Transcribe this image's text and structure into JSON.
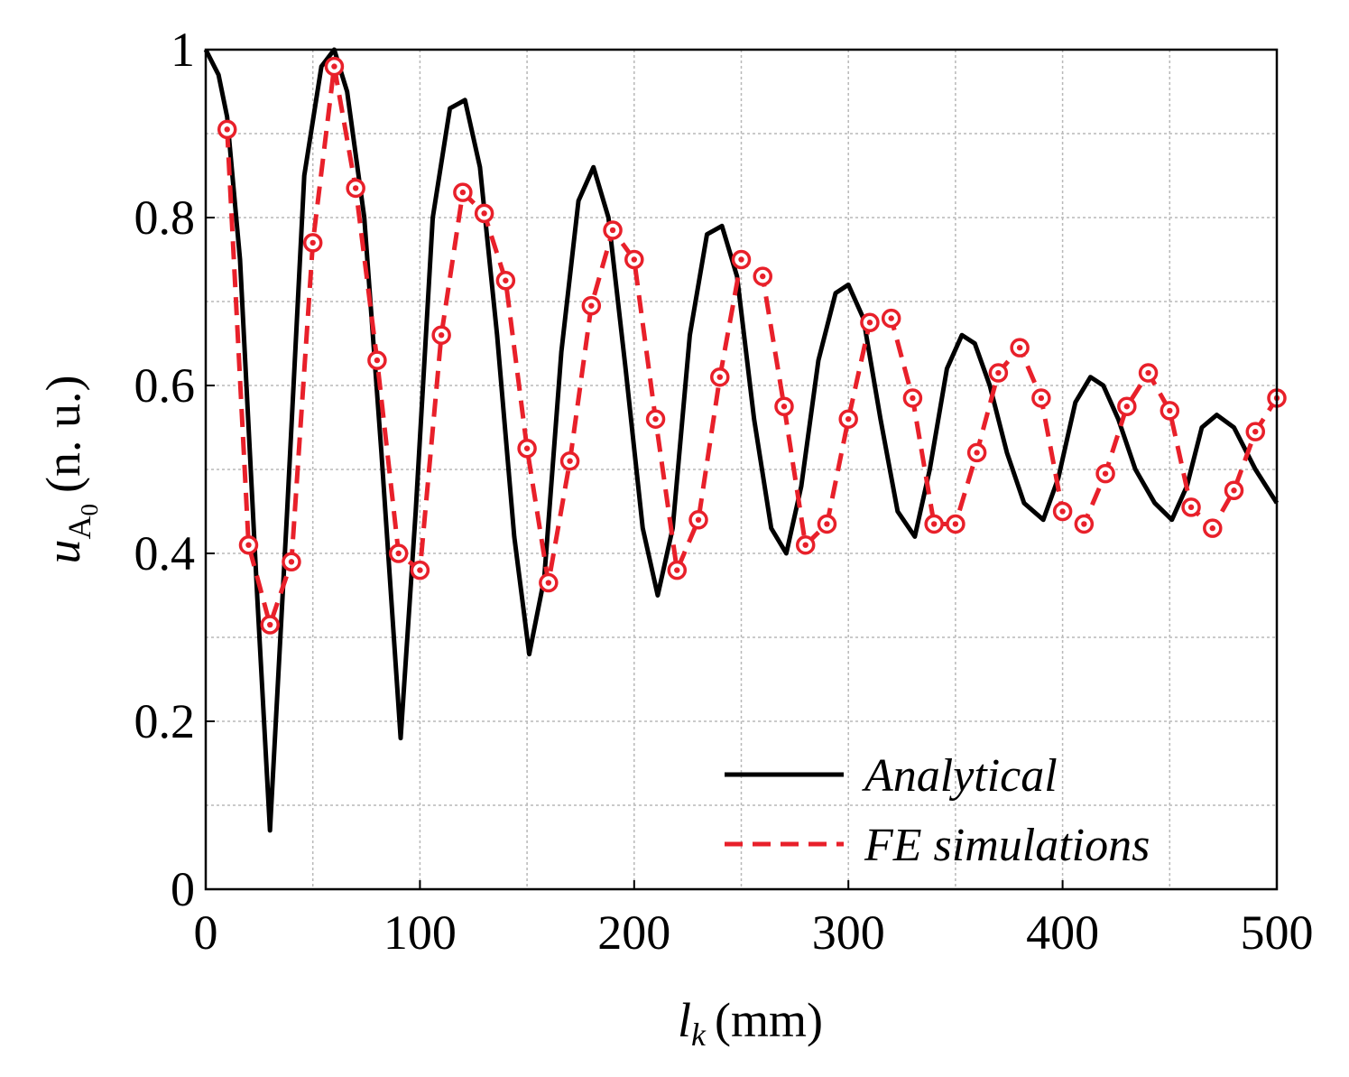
{
  "chart_data": {
    "type": "line",
    "xlabel": "l_k (mm)",
    "xlabel_var": "l",
    "xlabel_sub": "k",
    "xlabel_unit": "(mm)",
    "ylabel_var": "u",
    "ylabel_sub": "A",
    "ylabel_subsub": "0",
    "ylabel_unit": "(n. u.)",
    "xlim": [
      0,
      500
    ],
    "ylim": [
      0,
      1
    ],
    "x_ticks": [
      0,
      100,
      200,
      300,
      400,
      500
    ],
    "x_tick_labels": [
      "0",
      "100",
      "200",
      "300",
      "400",
      "500"
    ],
    "y_ticks": [
      0,
      0.2,
      0.4,
      0.6,
      0.8,
      1
    ],
    "y_tick_labels": [
      "0",
      "0.2",
      "0.4",
      "0.6",
      "0.8",
      "1"
    ],
    "x_grid": [
      50,
      150,
      250,
      350,
      450
    ],
    "y_grid": [
      0.1,
      0.3,
      0.5,
      0.7,
      0.9
    ],
    "grid": true,
    "legend_position": "bottom-right",
    "series": [
      {
        "name": "Analytical",
        "style": "solid",
        "color": "#000000",
        "x": [
          0,
          6,
          10,
          16,
          24,
          30,
          38,
          46,
          54,
          60,
          66,
          74,
          82,
          91,
          98,
          106,
          114,
          121,
          128,
          136,
          144,
          151,
          158,
          166,
          174,
          181,
          188,
          196,
          204,
          211,
          218,
          226,
          234,
          241,
          248,
          256,
          264,
          271,
          278,
          286,
          294,
          300,
          307,
          315,
          323,
          331,
          338,
          346,
          353,
          359,
          366,
          374,
          382,
          391,
          398,
          406,
          413,
          419,
          426,
          434,
          443,
          451,
          458,
          465,
          472,
          480,
          490,
          500
        ],
        "y": [
          1.0,
          0.97,
          0.92,
          0.75,
          0.35,
          0.07,
          0.45,
          0.85,
          0.98,
          1.0,
          0.95,
          0.8,
          0.52,
          0.18,
          0.45,
          0.8,
          0.93,
          0.94,
          0.86,
          0.66,
          0.42,
          0.28,
          0.37,
          0.64,
          0.82,
          0.86,
          0.8,
          0.62,
          0.43,
          0.35,
          0.43,
          0.66,
          0.78,
          0.79,
          0.73,
          0.56,
          0.43,
          0.4,
          0.48,
          0.63,
          0.71,
          0.72,
          0.68,
          0.56,
          0.45,
          0.42,
          0.5,
          0.62,
          0.66,
          0.65,
          0.6,
          0.52,
          0.46,
          0.44,
          0.49,
          0.58,
          0.61,
          0.6,
          0.56,
          0.5,
          0.46,
          0.44,
          0.48,
          0.55,
          0.565,
          0.55,
          0.5,
          0.46
        ]
      },
      {
        "name": "FE simulations",
        "style": "dashed",
        "color": "#e8202a",
        "marker": "circle",
        "x": [
          10,
          20,
          30,
          40,
          50,
          60,
          70,
          80,
          90,
          100,
          110,
          120,
          130,
          140,
          150,
          160,
          170,
          180,
          190,
          200,
          210,
          220,
          230,
          240,
          250,
          260,
          270,
          280,
          290,
          300,
          310,
          320,
          330,
          340,
          350,
          360,
          370,
          380,
          390,
          400,
          410,
          420,
          430,
          440,
          450,
          460,
          470,
          480,
          490,
          500
        ],
        "y": [
          0.905,
          0.41,
          0.315,
          0.39,
          0.77,
          0.98,
          0.835,
          0.63,
          0.4,
          0.38,
          0.66,
          0.83,
          0.805,
          0.725,
          0.525,
          0.365,
          0.51,
          0.695,
          0.785,
          0.75,
          0.56,
          0.38,
          0.44,
          0.61,
          0.75,
          0.73,
          0.575,
          0.41,
          0.435,
          0.56,
          0.675,
          0.68,
          0.585,
          0.435,
          0.435,
          0.52,
          0.615,
          0.645,
          0.585,
          0.45,
          0.435,
          0.495,
          0.575,
          0.615,
          0.57,
          0.455,
          0.43,
          0.475,
          0.545,
          0.585
        ]
      }
    ]
  }
}
